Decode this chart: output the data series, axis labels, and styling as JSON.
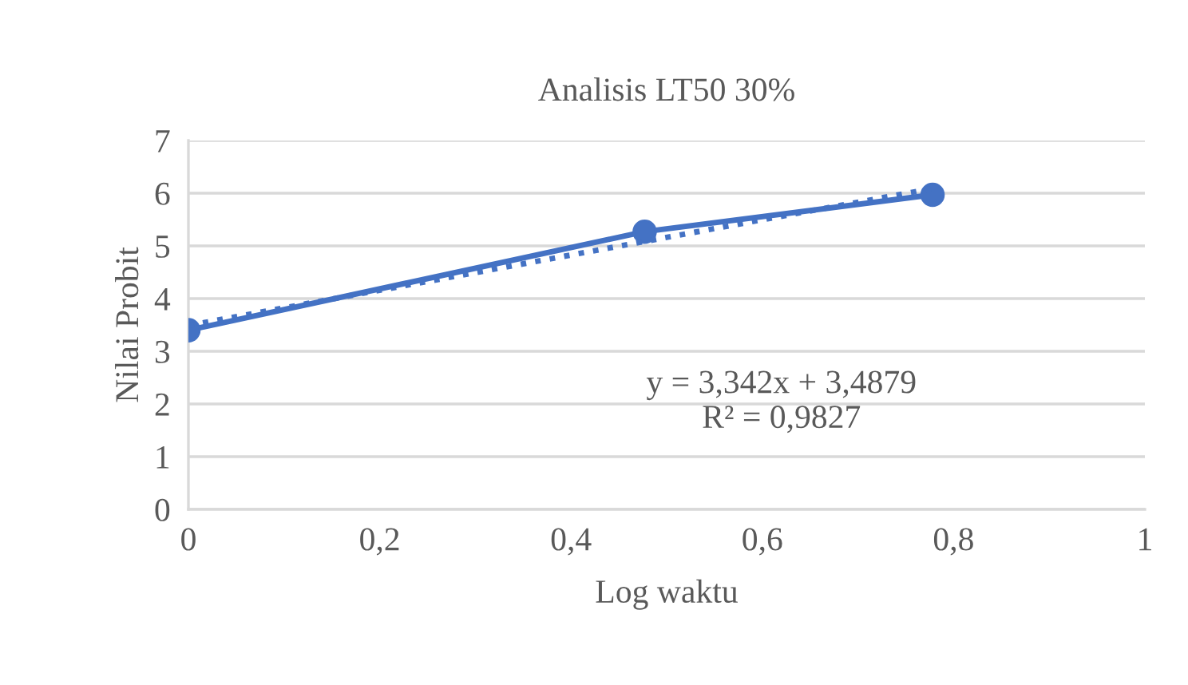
{
  "chart_data": {
    "type": "line",
    "title": "Analisis LT50 30%",
    "xlabel": "Log waktu",
    "ylabel": "Nilai Probit",
    "xlim": [
      0,
      1
    ],
    "xticks": [
      {
        "value": 0,
        "label": "0"
      },
      {
        "value": 0.2,
        "label": "0,2"
      },
      {
        "value": 0.4,
        "label": "0,4"
      },
      {
        "value": 0.6,
        "label": "0,6"
      },
      {
        "value": 0.8,
        "label": "0,8"
      },
      {
        "value": 1,
        "label": "1"
      }
    ],
    "ylim": [
      0,
      7
    ],
    "yticks": [
      0,
      1,
      2,
      3,
      4,
      5,
      6,
      7
    ],
    "grid": "y",
    "series": [
      {
        "color": "#4472c4",
        "x": [
          0,
          0.477,
          0.778
        ],
        "values": [
          3.4,
          5.27,
          5.97
        ],
        "marker": "circle",
        "line_style": "solid"
      },
      {
        "color": "#4472c4",
        "x": [
          0,
          0.778
        ],
        "values": [
          3.49,
          6.09
        ],
        "marker": "none",
        "line_style": "dotted"
      }
    ],
    "annotations": [
      "y = 3,342x + 3,4879\nR² = 0,9827"
    ]
  }
}
